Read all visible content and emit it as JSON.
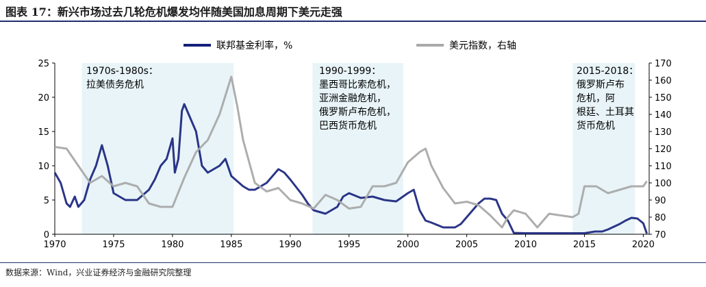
{
  "title": "图表 17：新兴市场过去几轮危机爆发均伴随美国加息周期下美元走强",
  "source": "数据来源：Wind，兴业证券经济与金融研究院整理",
  "chart_data": {
    "type": "line",
    "legend": {
      "placement": "top-center"
    },
    "x_ticks": [
      "1970",
      "1975",
      "1980",
      "1985",
      "1990",
      "1995",
      "2000",
      "2005",
      "2010",
      "2015",
      "2020"
    ],
    "xlim": [
      1970,
      2020.5
    ],
    "y_left": {
      "ticks": [
        "0",
        "5",
        "10",
        "15",
        "20",
        "25"
      ],
      "lim": [
        0,
        25
      ]
    },
    "y_right": {
      "ticks": [
        "70",
        "80",
        "90",
        "100",
        "110",
        "120",
        "130",
        "140",
        "150",
        "160",
        "170"
      ],
      "lim": [
        70,
        170
      ]
    },
    "colors": {
      "fed": "#141f7a",
      "dxy": "#a9a9a9",
      "shade": "#e8f4f8"
    },
    "series": [
      {
        "name": "联邦基金利率，%",
        "axis": "left",
        "x": [
          1970,
          1970.5,
          1971,
          1971.3,
          1971.7,
          1972,
          1972.5,
          1973,
          1973.5,
          1974,
          1974.5,
          1975,
          1975.5,
          1976,
          1977,
          1978,
          1978.5,
          1979,
          1979.5,
          1980,
          1980.2,
          1980.5,
          1980.8,
          1981,
          1981.5,
          1982,
          1982.5,
          1983,
          1984,
          1984.5,
          1985,
          1986,
          1986.5,
          1987,
          1988,
          1989,
          1989.5,
          1990,
          1991,
          1991.5,
          1992,
          1993,
          1994,
          1994.5,
          1995,
          1996,
          1997,
          1998,
          1999,
          2000,
          2000.5,
          2001,
          2001.5,
          2002,
          2003,
          2004,
          2004.5,
          2005,
          2005.5,
          2006,
          2006.5,
          2007,
          2007.5,
          2008,
          2008.5,
          2009,
          2010,
          2015,
          2015.9,
          2016.5,
          2017,
          2017.5,
          2018,
          2018.5,
          2019,
          2019.5,
          2020,
          2020.3
        ],
        "values": [
          9,
          7.5,
          4.5,
          4,
          5.5,
          4,
          5,
          8,
          10,
          13,
          10,
          6,
          5.5,
          5,
          5,
          6.5,
          8,
          10,
          11,
          14,
          9,
          11,
          18,
          19,
          17,
          15,
          10,
          9,
          10,
          11,
          8.5,
          7,
          6.5,
          6.5,
          7.5,
          9.5,
          9,
          8,
          5.8,
          4.5,
          3.5,
          3,
          4,
          5.5,
          6,
          5.3,
          5.5,
          5,
          4.8,
          6,
          6.5,
          3.5,
          2,
          1.7,
          1,
          1,
          1.5,
          2.5,
          3.5,
          4.5,
          5.2,
          5.2,
          5,
          3,
          2,
          0.2,
          0.15,
          0.15,
          0.4,
          0.4,
          0.7,
          1.1,
          1.5,
          2,
          2.4,
          2.3,
          1.6,
          0.1
        ]
      },
      {
        "name": "美元指数，右轴",
        "axis": "right",
        "x": [
          1970,
          1971,
          1972,
          1973,
          1974,
          1975,
          1976,
          1977,
          1978,
          1979,
          1980,
          1981,
          1982,
          1983,
          1984,
          1985,
          1985.5,
          1986,
          1987,
          1988,
          1989,
          1990,
          1991,
          1992,
          1993,
          1994,
          1995,
          1996,
          1997,
          1998,
          1999,
          2000,
          2001,
          2001.5,
          2002,
          2003,
          2004,
          2005,
          2006,
          2007,
          2008,
          2008.5,
          2009,
          2010,
          2011,
          2012,
          2013,
          2014,
          2014.5,
          2015,
          2016,
          2017,
          2018,
          2019,
          2020,
          2020.3
        ],
        "values": [
          121,
          120,
          110,
          100,
          104,
          98,
          100,
          98,
          88,
          86,
          86,
          103,
          118,
          125,
          140,
          162,
          145,
          125,
          100,
          95,
          97,
          90,
          88,
          85,
          93,
          90,
          85,
          86,
          98,
          98,
          100,
          112,
          118,
          120,
          110,
          97,
          88,
          89,
          87,
          81,
          74,
          80,
          84,
          82,
          74,
          82,
          81,
          80,
          82,
          98,
          98,
          94,
          96,
          98,
          98,
          101
        ]
      }
    ],
    "annotations": [
      {
        "label": "1970s-1980s：\n拉美债务危机",
        "x_range": [
          1972.3,
          1985.2
        ]
      },
      {
        "label": "1990-1999：\n墨西哥比索危机，\n亚洲金融危机，\n俄罗斯卢布危机，\n巴西货币危机",
        "x_range": [
          1991.9,
          1999.6
        ]
      },
      {
        "label": "2015-2018：\n俄罗斯卢布\n危机，阿\n根廷、土耳其\n货币危机",
        "x_range": [
          2014.0,
          2019.3
        ]
      }
    ]
  }
}
